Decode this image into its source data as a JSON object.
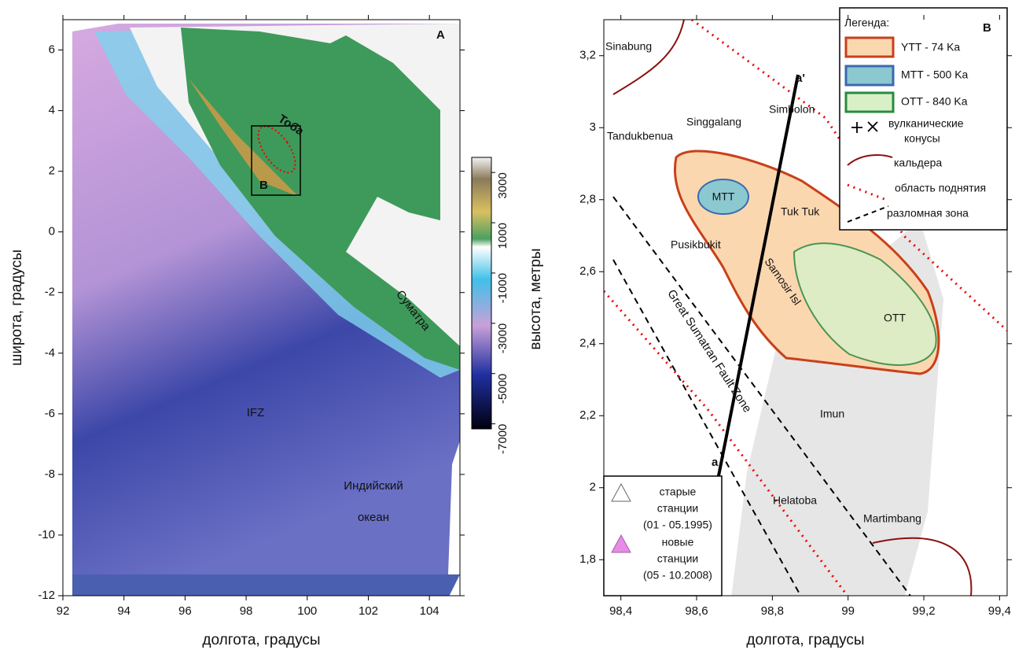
{
  "panel_a": {
    "letter": "А",
    "xlabel": "долгота, градусы",
    "ylabel": "широта, градусы",
    "xlim": [
      92,
      105
    ],
    "ylim": [
      -12,
      7
    ],
    "xticks": [
      92,
      94,
      96,
      98,
      100,
      102,
      104
    ],
    "yticks": [
      -12,
      -10,
      -8,
      -6,
      -4,
      -2,
      0,
      2,
      4,
      6
    ],
    "colorbar": {
      "label": "высота, метры",
      "lim": [
        -7200,
        3600
      ],
      "ticks": [
        3000,
        1000,
        -1000,
        -3000,
        -5000,
        -7000
      ]
    },
    "labels": {
      "toba": "Тоба",
      "sumatra": "Суматра",
      "ifz": "IFZ",
      "ocean": [
        "Индийский",
        "океан"
      ],
      "box": "B"
    }
  },
  "panel_b": {
    "letter": "B",
    "xlabel": "долгота, градусы",
    "xlim": [
      98.355,
      99.42
    ],
    "ylim": [
      1.7,
      3.3
    ],
    "xticks": [
      {
        "value": 98.4,
        "label": "98,4"
      },
      {
        "value": 98.6,
        "label": "98,6"
      },
      {
        "value": 98.8,
        "label": "98,8"
      },
      99,
      {
        "value": 99.2,
        "label": "99,2"
      },
      {
        "value": 99.4,
        "label": "99,4"
      }
    ],
    "yticks": [
      {
        "value": 1.8,
        "label": "1,8"
      },
      2,
      {
        "value": 2.2,
        "label": "2,2"
      },
      {
        "value": 2.4,
        "label": "2,4"
      },
      {
        "value": 2.6,
        "label": "2,6"
      },
      {
        "value": 2.8,
        "label": "2,8"
      },
      3,
      {
        "value": 3.2,
        "label": "3,2"
      }
    ],
    "legend": {
      "title": "Легенда:",
      "ytt": "YTT - 74 Ka",
      "mtt": "MTT - 500 Ka",
      "ott": "OTT - 840 Ka",
      "cones": [
        "вулканические",
        "конусы"
      ],
      "caldera": "кальдера",
      "uplift": "область поднятия",
      "fault": "разломная зона"
    },
    "stations": {
      "old": [
        "старые",
        "станции",
        "(01 - 05.1995)"
      ],
      "new": [
        "новые",
        "станции",
        "(05 - 10.2008)"
      ]
    },
    "places": {
      "sinabung": "Sinabung",
      "singgalang": "Singgalang",
      "simbolon": "Simbolon",
      "tandukbenua": "Tandukbenua",
      "tuktuk": "Tuk Tuk",
      "pusikbukit": "Pusikbukit",
      "samosir": "Samosir Isl",
      "mtt": "MTT",
      "ott": "OTT",
      "gsfz": "Great Sumatran Fault Zone",
      "imun": "Imun",
      "helatoba": "Helatoba",
      "martimbang": "Martimbang",
      "a": "a",
      "a2": "a'"
    }
  }
}
